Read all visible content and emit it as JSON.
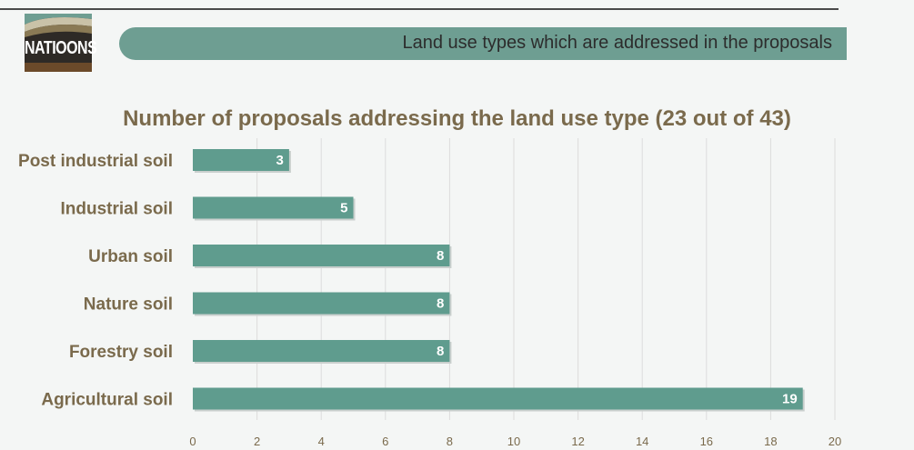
{
  "header": {
    "logo_text": "NATIOONS",
    "banner_text": "Land use types which are addressed in the proposals"
  },
  "colors": {
    "bar": "#5f9c8e",
    "banner": "#6e9e92",
    "label": "#7a6a4c"
  },
  "chart_data": {
    "type": "bar",
    "orientation": "horizontal",
    "title": "Number of proposals addressing the land use type (23 out of 43)",
    "categories": [
      "Post industrial soil",
      "Industrial soil",
      "Urban soil",
      "Nature soil",
      "Forestry soil",
      "Agricultural soil"
    ],
    "values": [
      3,
      5,
      8,
      8,
      8,
      19
    ],
    "data_labels": [
      "3",
      "5",
      "8",
      "8",
      "8",
      "19"
    ],
    "xlim": [
      0,
      20
    ],
    "x_ticks": [
      "0",
      "2",
      "4",
      "6",
      "8",
      "10",
      "12",
      "14",
      "16",
      "18",
      "20"
    ],
    "grid": true
  }
}
